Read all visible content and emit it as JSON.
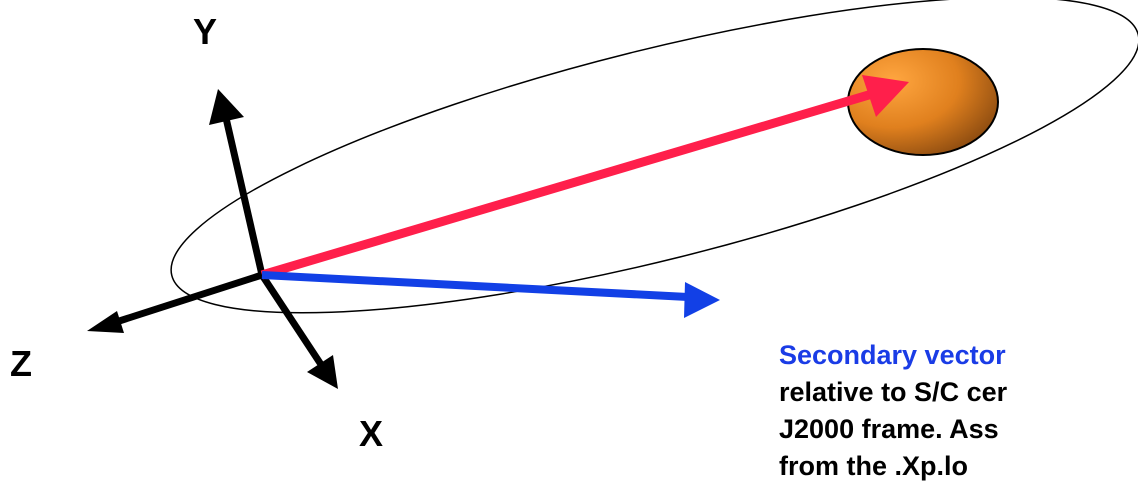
{
  "axes": {
    "y_label": "Y",
    "z_label": "Z",
    "x_label": "X"
  },
  "caption": {
    "line1": "Secondary vector",
    "line2": "relative to S/C cer",
    "line3": "J2000 frame.  Ass",
    "line4": "from the .Xp.lo"
  },
  "colors": {
    "primary_vector": "#ff1f4b",
    "secondary_vector": "#1240e6",
    "axes": "#000000",
    "body_fill_light": "#f7941d",
    "body_fill_dark": "#8a4a10",
    "caption_highlight": "#1a3ce6"
  }
}
